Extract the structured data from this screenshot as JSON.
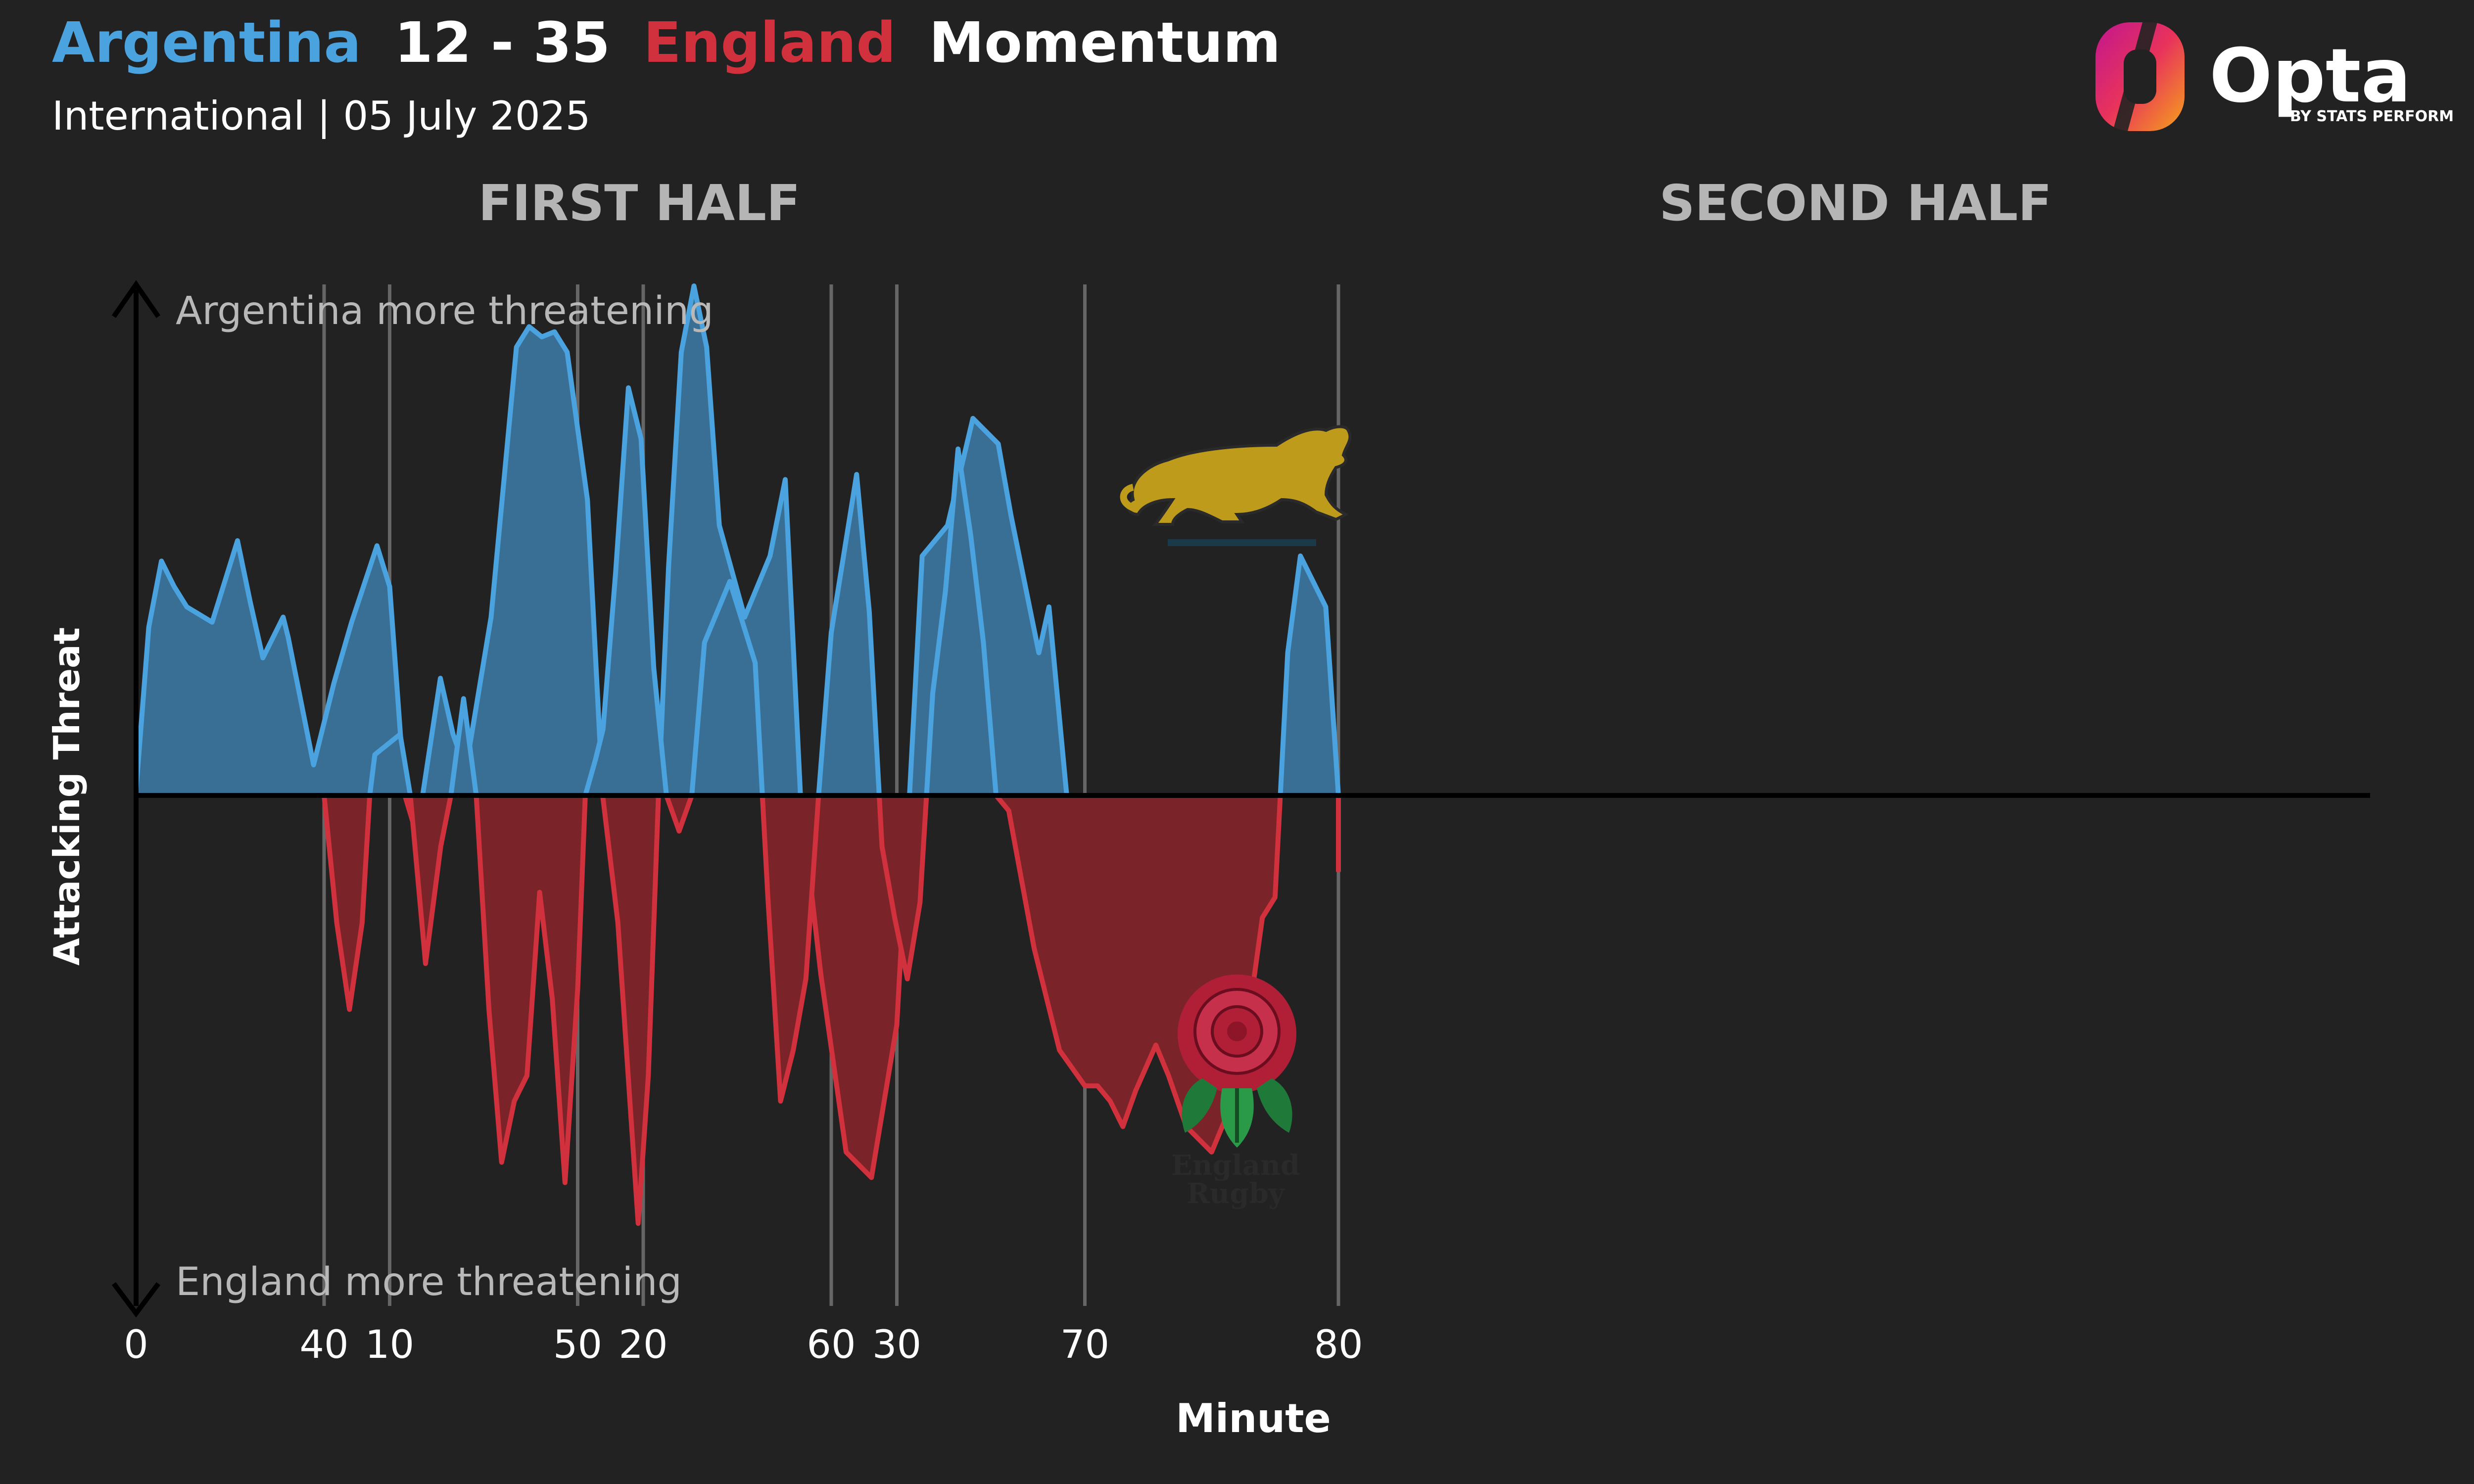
{
  "header": {
    "home_team": "Argentina",
    "score": "12 - 35",
    "away_team": "England",
    "title_suffix": "Momentum",
    "subtitle": "International | 05 July 2025",
    "home_color": "#4aa3df",
    "away_color": "#d0313c"
  },
  "brand": {
    "logo_text": "Opta",
    "tagline": "BY STATS PERFORM",
    "icon": "opta-logo-icon"
  },
  "crests": {
    "home_icon": "puma-crest-icon",
    "away_icon": "rose-crest-icon",
    "away_text_line1": "England",
    "away_text_line2": "Rugby"
  },
  "annotations": {
    "top": "Argentina more threatening",
    "bottom": "England more threatening"
  },
  "chart_data": {
    "type": "area",
    "xlabel": "Minute",
    "ylabel": "Attacking Threat",
    "ylim": [
      -1,
      1
    ],
    "grid_x": true,
    "panels": [
      {
        "title": "FIRST HALF",
        "xlim": [
          0,
          40
        ],
        "ticks": [
          0,
          10,
          20,
          30
        ],
        "points": [
          [
            0,
            0.01
          ],
          [
            0.5,
            0.33
          ],
          [
            1,
            0.46
          ],
          [
            1.5,
            0.41
          ],
          [
            2,
            0.37
          ],
          [
            3,
            0.34
          ],
          [
            4,
            0.5
          ],
          [
            4.5,
            0.38
          ],
          [
            5,
            0.27
          ],
          [
            5.8,
            0.35
          ],
          [
            6,
            0.31
          ],
          [
            7,
            0.06
          ],
          [
            7.8,
            0.22
          ],
          [
            8.5,
            0.34
          ],
          [
            9.5,
            0.49
          ],
          [
            10,
            0.41
          ],
          [
            10.6,
            0.0
          ],
          [
            10.9,
            -0.05
          ],
          [
            11.3,
            0.0
          ],
          [
            12,
            0.23
          ],
          [
            12.5,
            0.12
          ],
          [
            13,
            0.05
          ],
          [
            14,
            0.35
          ],
          [
            15,
            0.88
          ],
          [
            15.5,
            0.92
          ],
          [
            16,
            0.9
          ],
          [
            16.5,
            0.91
          ],
          [
            17,
            0.87
          ],
          [
            17.8,
            0.58
          ],
          [
            18.4,
            0.0
          ],
          [
            19,
            -0.25
          ],
          [
            19.5,
            -0.62
          ],
          [
            19.8,
            -0.84
          ],
          [
            20.2,
            -0.55
          ],
          [
            20.6,
            0.0
          ],
          [
            21,
            0.45
          ],
          [
            21.5,
            0.87
          ],
          [
            22,
            1.0
          ],
          [
            22.5,
            0.88
          ],
          [
            23,
            0.53
          ],
          [
            24,
            0.35
          ],
          [
            25,
            0.47
          ],
          [
            25.6,
            0.62
          ],
          [
            26.2,
            0.0
          ],
          [
            27,
            -0.35
          ],
          [
            28,
            -0.7
          ],
          [
            29,
            -0.75
          ],
          [
            30,
            -0.45
          ],
          [
            30.5,
            0.0
          ],
          [
            31,
            0.47
          ],
          [
            32,
            0.53
          ],
          [
            33,
            0.74
          ],
          [
            34,
            0.69
          ],
          [
            34.5,
            0.55
          ],
          [
            35.6,
            0.28
          ],
          [
            36,
            0.37
          ],
          [
            36.7,
            0.0
          ],
          [
            37.5,
            -0.36
          ],
          [
            38,
            -0.38
          ],
          [
            38.3,
            -0.2
          ]
        ]
      },
      {
        "title": "SECOND HALF",
        "xlim": [
          40,
          80
        ],
        "ticks": [
          40,
          50,
          60,
          70,
          80
        ],
        "points": [
          [
            40,
            0.0
          ],
          [
            40.5,
            -0.25
          ],
          [
            41,
            -0.42
          ],
          [
            41.5,
            -0.25
          ],
          [
            41.8,
            0.0
          ],
          [
            42,
            0.08
          ],
          [
            43,
            0.12
          ],
          [
            43.4,
            0.0
          ],
          [
            44,
            -0.33
          ],
          [
            44.6,
            -0.1
          ],
          [
            45,
            0.0
          ],
          [
            45.5,
            0.19
          ],
          [
            46,
            0.0
          ],
          [
            46.5,
            -0.42
          ],
          [
            47,
            -0.72
          ],
          [
            47.5,
            -0.6
          ],
          [
            48,
            -0.55
          ],
          [
            48.5,
            -0.19
          ],
          [
            49,
            -0.4
          ],
          [
            49.5,
            -0.76
          ],
          [
            50,
            -0.38
          ],
          [
            50.3,
            0.0
          ],
          [
            50.7,
            0.07
          ],
          [
            51,
            0.13
          ],
          [
            51.5,
            0.44
          ],
          [
            52,
            0.8
          ],
          [
            52.5,
            0.7
          ],
          [
            53,
            0.25
          ],
          [
            53.5,
            0.0
          ],
          [
            54,
            -0.07
          ],
          [
            54.5,
            0.0
          ],
          [
            55,
            0.3
          ],
          [
            56,
            0.42
          ],
          [
            56.5,
            0.34
          ],
          [
            57,
            0.26
          ],
          [
            57.5,
            -0.2
          ],
          [
            58,
            -0.6
          ],
          [
            58.5,
            -0.5
          ],
          [
            59,
            -0.36
          ],
          [
            59.5,
            0.0
          ],
          [
            60,
            0.32
          ],
          [
            61,
            0.63
          ],
          [
            61.5,
            0.36
          ],
          [
            62,
            -0.1
          ],
          [
            62.5,
            -0.24
          ],
          [
            63,
            -0.36
          ],
          [
            63.5,
            -0.21
          ],
          [
            64,
            0.2
          ],
          [
            64.5,
            0.4
          ],
          [
            65,
            0.68
          ],
          [
            65.5,
            0.51
          ],
          [
            66,
            0.3
          ],
          [
            66.5,
            0.0
          ],
          [
            67,
            -0.03
          ],
          [
            68,
            -0.3
          ],
          [
            69,
            -0.5
          ],
          [
            70,
            -0.57
          ],
          [
            70.5,
            -0.57
          ],
          [
            71,
            -0.6
          ],
          [
            71.5,
            -0.65
          ],
          [
            72,
            -0.58
          ],
          [
            72.8,
            -0.49
          ],
          [
            73.3,
            -0.55
          ],
          [
            74,
            -0.65
          ],
          [
            75,
            -0.7
          ],
          [
            75.5,
            -0.64
          ],
          [
            76,
            -0.52
          ],
          [
            76.5,
            -0.42
          ],
          [
            77,
            -0.24
          ],
          [
            77.5,
            -0.2
          ],
          [
            78,
            0.28
          ],
          [
            78.5,
            0.47
          ],
          [
            79,
            0.42
          ],
          [
            79.5,
            0.37
          ],
          [
            80,
            0.0
          ],
          [
            80,
            -0.15
          ]
        ]
      }
    ]
  }
}
